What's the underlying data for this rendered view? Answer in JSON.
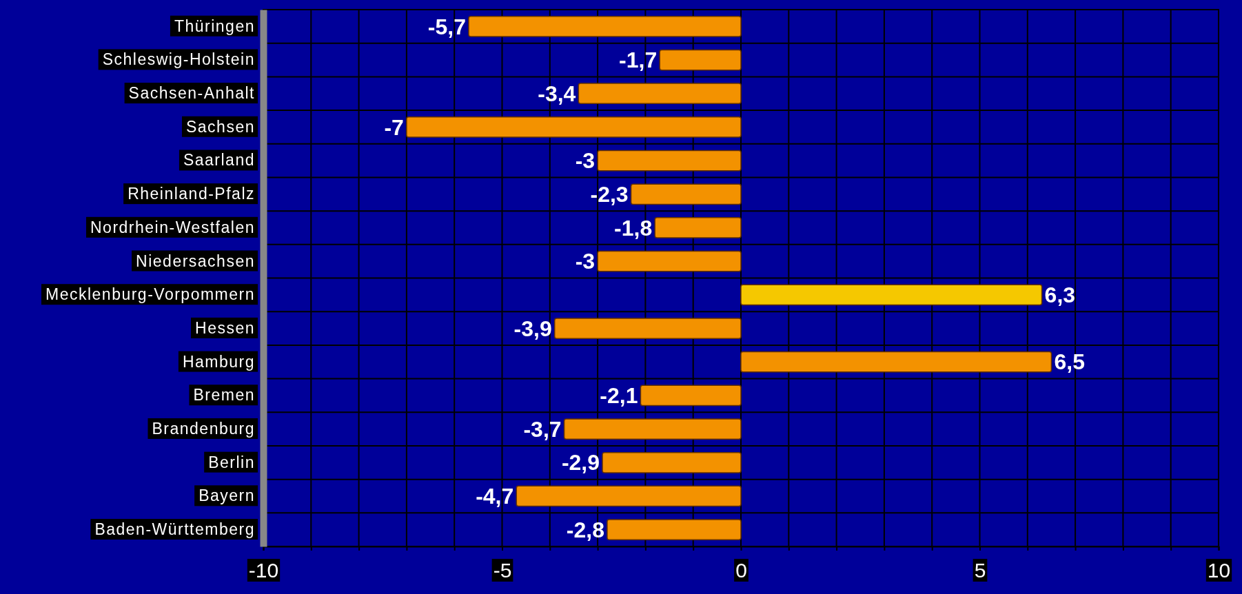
{
  "chart_data": {
    "type": "bar",
    "orientation": "horizontal",
    "categories": [
      "Thüringen",
      "Schleswig-Holstein",
      "Sachsen-Anhalt",
      "Sachsen",
      "Saarland",
      "Rheinland-Pfalz",
      "Nordrhein-Westfalen",
      "Niedersachsen",
      "Mecklenburg-Vorpommern",
      "Hessen",
      "Hamburg",
      "Bremen",
      "Brandenburg",
      "Berlin",
      "Bayern",
      "Baden-Württemberg"
    ],
    "values": [
      -5.7,
      -1.7,
      -3.4,
      -7,
      -3,
      -2.3,
      -1.8,
      -3,
      6.3,
      -3.9,
      6.5,
      -2.1,
      -3.7,
      -2.9,
      -4.7,
      -2.8
    ],
    "value_labels": [
      "-5,7",
      "-1,7",
      "-3,4",
      "-7",
      "-3",
      "-2,3",
      "-1,8",
      "-3",
      "6,3",
      "-3,9",
      "6,5",
      "-2,1",
      "-3,7",
      "-2,9",
      "-4,7",
      "-2,8"
    ],
    "colors": [
      "#f39200",
      "#f39200",
      "#f39200",
      "#f39200",
      "#f39200",
      "#f39200",
      "#f39200",
      "#f39200",
      "#f5c800",
      "#f39200",
      "#f39200",
      "#f39200",
      "#f39200",
      "#f39200",
      "#f39200",
      "#f39200"
    ],
    "xlim": [
      -10,
      10
    ],
    "xticks": [
      -10,
      {
        "value": -9,
        "label": null
      },
      {
        "value": -8,
        "label": null
      },
      {
        "value": -7,
        "label": null
      },
      {
        "value": -6,
        "label": null
      },
      -5,
      {
        "value": -4,
        "label": null
      },
      {
        "value": -3,
        "label": null
      },
      {
        "value": -2,
        "label": null
      },
      {
        "value": -1,
        "label": null
      },
      0,
      {
        "value": 1,
        "label": null
      },
      {
        "value": 2,
        "label": null
      },
      {
        "value": 3,
        "label": null
      },
      {
        "value": 4,
        "label": null
      },
      5,
      {
        "value": 6,
        "label": null
      },
      {
        "value": 7,
        "label": null
      },
      {
        "value": 8,
        "label": null
      },
      {
        "value": 9,
        "label": null
      },
      10
    ],
    "grid": true
  }
}
